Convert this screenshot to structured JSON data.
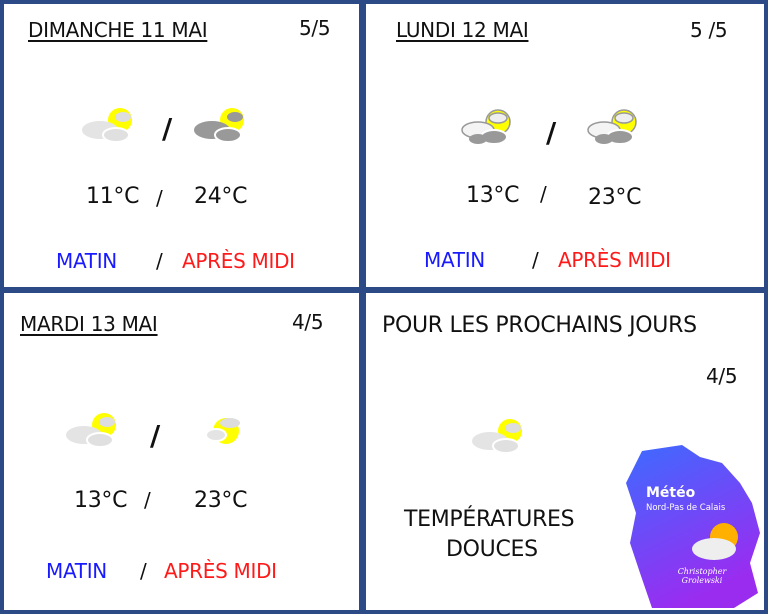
{
  "days": [
    {
      "title": "DIMANCHE 11 MAI",
      "rating": "5/5",
      "temp_morning": "11°C",
      "temp_afternoon": "24°C",
      "icon_morning": "sun-behind-light-clouds-icon",
      "icon_afternoon": "sun-behind-dark-clouds-icon"
    },
    {
      "title": "LUNDI 12 MAI",
      "rating": "5 /5",
      "temp_morning": "13°C",
      "temp_afternoon": "23°C",
      "icon_morning": "sun-behind-clouds-icon",
      "icon_afternoon": "sun-behind-clouds-icon"
    },
    {
      "title": "MARDI 13 MAI",
      "rating": "4/5",
      "temp_morning": "13°C",
      "temp_afternoon": "23°C",
      "icon_morning": "sun-behind-light-clouds-icon",
      "icon_afternoon": "sun-small-cloud-icon"
    }
  ],
  "labels": {
    "morning": "MATIN",
    "afternoon": "APRÈS MIDI",
    "sep": "/"
  },
  "outlook": {
    "title": "POUR LES PROCHAINS JOURS",
    "rating": "4/5",
    "text_line1": "TEMPÉRATURES",
    "text_line2": "DOUCES",
    "icon": "sun-behind-light-clouds-icon"
  },
  "logo": {
    "title": "Météo",
    "subtitle": "Nord-Pas de Calais",
    "author": "Christopher Grolewski"
  },
  "colors": {
    "border": "#2c4a86",
    "morning": "#1a1aff",
    "afternoon": "#ff1a1a",
    "sun": "#ffff00"
  }
}
